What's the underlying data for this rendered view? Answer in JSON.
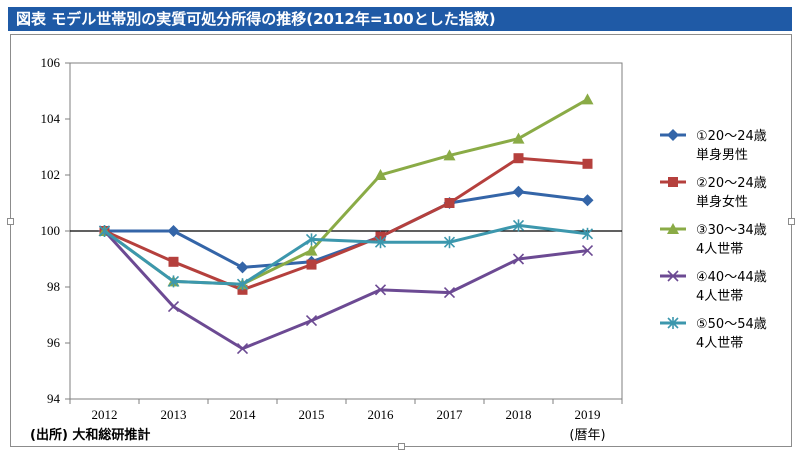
{
  "header": {
    "title": "図表 モデル世帯別の実質可処分所得の推移(2012年=100とした指数)"
  },
  "colors": {
    "title_bg": "#1f5aa6"
  },
  "chart_data": {
    "type": "line",
    "title": "図表 モデル世帯別の実質可処分所得の推移(2012年=100とした指数)",
    "categories": [
      "2012",
      "2013",
      "2014",
      "2015",
      "2016",
      "2017",
      "2018",
      "2019"
    ],
    "xlabel": "(暦年)",
    "ylabel": "",
    "ylim": [
      94,
      106
    ],
    "yticks": [
      "94",
      "96",
      "98",
      "100",
      "102",
      "104",
      "106"
    ],
    "reference_line": 100,
    "source": "(出所) 大和総研推計",
    "legend_position": "right",
    "series": [
      {
        "name_line1": "①20〜24歳",
        "name_line2": "単身男性",
        "color": "#3465a8",
        "marker": "diamond",
        "values": [
          100.0,
          100.0,
          98.7,
          98.9,
          99.8,
          101.0,
          101.4,
          101.1
        ]
      },
      {
        "name_line1": "②20〜24歳",
        "name_line2": "単身女性",
        "color": "#b5403d",
        "marker": "square",
        "values": [
          100.0,
          98.9,
          97.9,
          98.8,
          99.8,
          101.0,
          102.6,
          102.4
        ]
      },
      {
        "name_line1": "③30〜34歳",
        "name_line2": "4人世帯",
        "color": "#8aab46",
        "marker": "triangle",
        "values": [
          100.0,
          98.2,
          98.1,
          99.3,
          102.0,
          102.7,
          103.3,
          104.7
        ]
      },
      {
        "name_line1": "④40〜44歳",
        "name_line2": "4人世帯",
        "color": "#6c4a93",
        "marker": "x",
        "values": [
          100.0,
          97.3,
          95.8,
          96.8,
          97.9,
          97.8,
          99.0,
          99.3
        ]
      },
      {
        "name_line1": "⑤50〜54歳",
        "name_line2": "4人世帯",
        "color": "#3c97ad",
        "marker": "star",
        "values": [
          100.0,
          98.2,
          98.1,
          99.7,
          99.6,
          99.6,
          100.2,
          99.9
        ]
      }
    ]
  }
}
